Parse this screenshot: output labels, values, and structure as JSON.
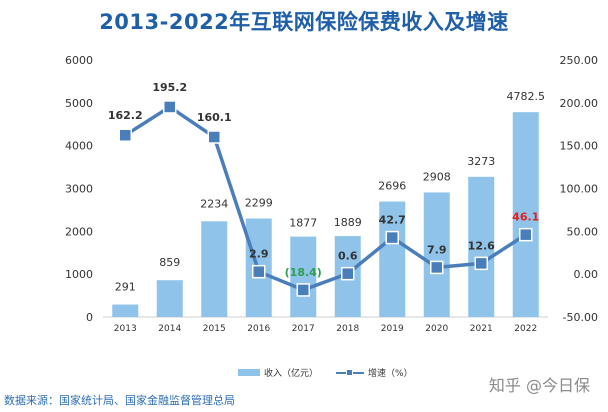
{
  "chart_data": {
    "type": "bar",
    "title": "2013-2022年互联网保险保费收入及增速",
    "categories": [
      "2013",
      "2014",
      "2015",
      "2016",
      "2017",
      "2018",
      "2019",
      "2020",
      "2021",
      "2022"
    ],
    "series": [
      {
        "name": "收入（亿元）",
        "axis": "left",
        "chart": "bar",
        "values": [
          291,
          859,
          2234,
          2299,
          1877,
          1889,
          2696,
          2908,
          3273,
          4782.5
        ],
        "labels": [
          "291",
          "859",
          "2234",
          "2299",
          "1877",
          "1889",
          "2696",
          "2908",
          "3273",
          "4782.5"
        ]
      },
      {
        "name": "增速（%）",
        "axis": "right",
        "chart": "line",
        "values": [
          162.2,
          195.2,
          160.1,
          2.9,
          -18.4,
          0.6,
          42.7,
          7.9,
          12.6,
          46.1
        ],
        "labels": [
          "162.2",
          "195.2",
          "160.1",
          "2.9",
          "(18.4)",
          "0.6",
          "42.7",
          "7.9",
          "12.6",
          "46.1"
        ]
      }
    ],
    "ylim_left": [
      0,
      6000
    ],
    "yticks_left": [
      "6000",
      "5000",
      "4000",
      "3000",
      "2000",
      "1000",
      "0"
    ],
    "ylim_right": [
      -50,
      250
    ],
    "yticks_right": [
      "250.00",
      "200.00",
      "150.00",
      "100.00",
      "50.00",
      "0.00",
      "-50.00"
    ],
    "grid": false,
    "legend_position": "bottom",
    "colors": {
      "bar": "#8fc3ea",
      "line": "#4a7ebb",
      "negative_label": "#2e9e4f",
      "highlight_label": "#e02020"
    }
  },
  "legend": {
    "bar_label": "收入（亿元）",
    "line_label": "增速（%）"
  },
  "source": "数据来源：国家统计局、国家金融监督管理总局",
  "watermark": "知乎 @今日保"
}
